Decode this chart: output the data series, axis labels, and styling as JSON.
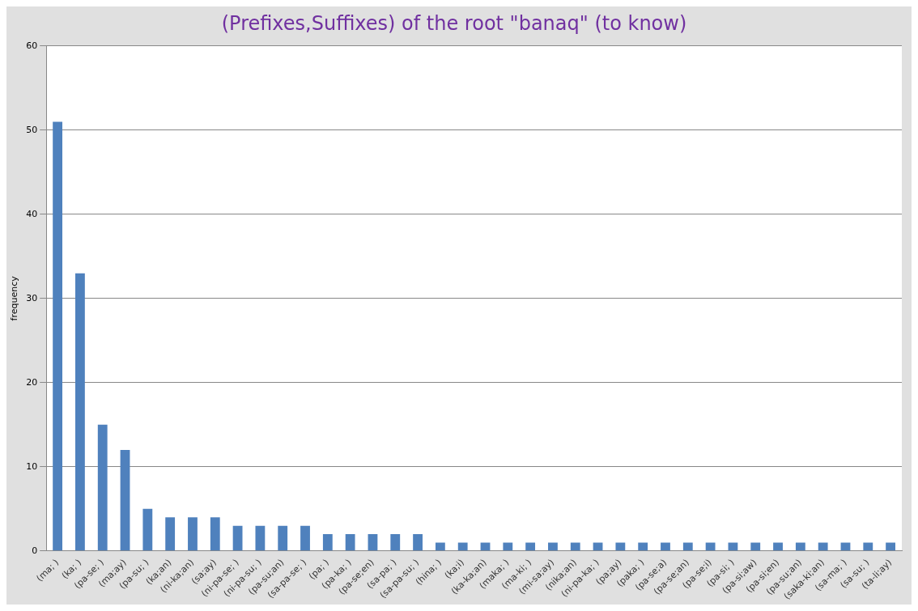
{
  "chart_data": {
    "type": "bar",
    "title": "(Prefixes,Suffixes) of the root \"banaq\" (to know)",
    "ylabel": "frequency",
    "categories": [
      "(ma; )",
      "(ka; )",
      "(pa-se; )",
      "(ma;ay)",
      "(pa-su; )",
      "(ka;an)",
      "(ni-ka;an)",
      "(sa;ay)",
      "(ni-pa-se; )",
      "(ni-pa-su; )",
      "(pa-su;an)",
      "(sa-pa-se; )",
      "(pa; )",
      "(pa-ka; )",
      "(pa-se;en)",
      "(sa-pa; )",
      "(sa-pa-su; )",
      "(hina; )",
      "(ka;i)",
      "(ka-ka;an)",
      "(maka; )",
      "(ma-ki; )",
      "(mi-sa;ay)",
      "(nika;an)",
      "(ni-pa-ka; )",
      "(pa;ay)",
      "(paka; )",
      "(pa-se;a)",
      "(pa-se;an)",
      "(pa-se;i)",
      "(pa-si; )",
      "(pa-si;aw)",
      "(pa-si;en)",
      "(pa-su;an)",
      "(saka-ki;an)",
      "(sa-ma; )",
      "(sa-su; )",
      "(ta-li;ay)"
    ],
    "values": [
      51,
      33,
      15,
      12,
      5,
      4,
      4,
      4,
      3,
      3,
      3,
      3,
      2,
      2,
      2,
      2,
      2,
      1,
      1,
      1,
      1,
      1,
      1,
      1,
      1,
      1,
      1,
      1,
      1,
      1,
      1,
      1,
      1,
      1,
      1,
      1,
      1,
      1
    ],
    "color": "#4f81bd",
    "ylim": [
      0,
      60
    ],
    "yticks": [
      0,
      10,
      20,
      30,
      40,
      50,
      60
    ],
    "grid": "y",
    "legend": false
  }
}
